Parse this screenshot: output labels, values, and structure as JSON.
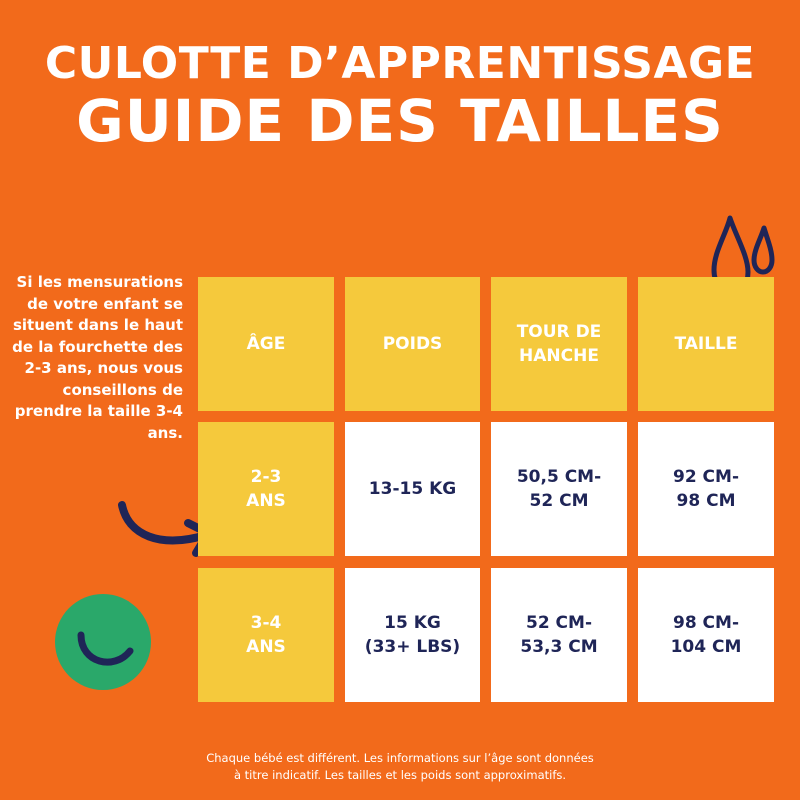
{
  "title_line1": "CULOTTE D’APPRENTISSAGE",
  "title_line2": "GUIDE DES TAILLES",
  "side_note": "Si les mensurations de votre enfant se situent dans le haut de la fourchette des 2-3 ans, nous vous conseillons de prendre la taille 3-4 ans.",
  "table": {
    "headers": [
      "ÂGE",
      "POIDS",
      "TOUR DE HANCHE",
      "TAILLE"
    ],
    "rows": [
      {
        "age": "2-3 ANS",
        "poids": "13-15 KG",
        "hanche": "50,5 CM-52 CM",
        "taille": "92 CM-98 CM"
      },
      {
        "age": "3-4 ANS",
        "poids": "15 KG (33+ LBS)",
        "hanche": "52 CM-53,3 CM",
        "taille": "98 CM-104 CM"
      }
    ]
  },
  "footnote_line1": "Chaque bébé est différent. Les informations sur l’âge sont données",
  "footnote_line2": "à titre indicatif. Les tailles et les poids sont approximatifs.",
  "icons": [
    "water-drops-icon",
    "curved-arrow-icon",
    "smile-circle-icon"
  ],
  "colors": {
    "background": "#f26a1b",
    "header_yellow": "#f5c93c",
    "navy": "#1f2557",
    "green": "#2aa86a",
    "white": "#ffffff"
  }
}
